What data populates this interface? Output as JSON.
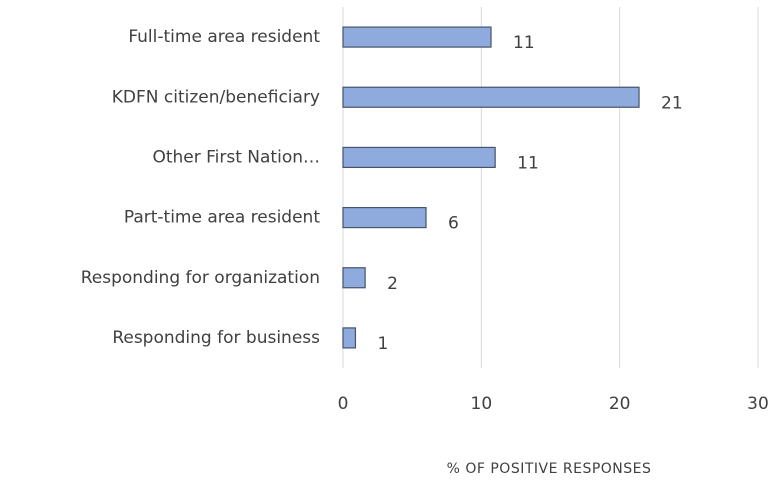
{
  "chart_data": {
    "type": "barh",
    "categories": [
      "Full-time area resident",
      "KDFN citizen/beneficiary",
      "Other First Nation…",
      "Part-time area resident",
      "Responding for organization",
      "Responding for business"
    ],
    "values": [
      10.7,
      21.4,
      11,
      6,
      1.6,
      0.9
    ],
    "value_labels": [
      "11",
      "21",
      "11",
      "6",
      "2",
      "1"
    ],
    "color": "#8faadc",
    "xlabel": "% OF POSITIVE RESPONSES",
    "xlim": [
      0,
      30
    ],
    "xticks": [
      0,
      10,
      20,
      30
    ],
    "grid": true
  }
}
